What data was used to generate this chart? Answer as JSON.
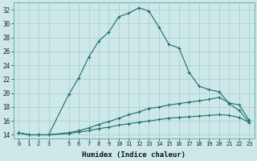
{
  "xlabel": "Humidex (Indice chaleur)",
  "ylabel": "",
  "bg_color": "#cce8e8",
  "grid_color": "#aacccc",
  "line_color": "#1a6e6e",
  "xlim": [
    -0.5,
    23.5
  ],
  "ylim": [
    13.5,
    33.0
  ],
  "xticks": [
    0,
    1,
    2,
    3,
    5,
    6,
    7,
    8,
    9,
    10,
    11,
    12,
    13,
    14,
    15,
    16,
    17,
    18,
    19,
    20,
    21,
    22,
    23
  ],
  "yticks": [
    14,
    16,
    18,
    20,
    22,
    24,
    26,
    28,
    30,
    32
  ],
  "line1_x": [
    0,
    1,
    2,
    3,
    5,
    6,
    7,
    8,
    9,
    10,
    11,
    12,
    13,
    14,
    15,
    16,
    17,
    18,
    19,
    20,
    21,
    22,
    23
  ],
  "line1_y": [
    14.3,
    14.0,
    14.0,
    14.0,
    19.8,
    22.2,
    25.2,
    27.5,
    28.8,
    31.0,
    31.5,
    32.3,
    31.8,
    29.5,
    27.0,
    26.5,
    23.0,
    21.0,
    20.5,
    20.2,
    18.5,
    17.5,
    15.8
  ],
  "line2_x": [
    0,
    1,
    2,
    3,
    5,
    6,
    7,
    8,
    9,
    10,
    11,
    12,
    13,
    14,
    15,
    16,
    17,
    18,
    19,
    20,
    21,
    22,
    23
  ],
  "line2_y": [
    14.3,
    14.0,
    14.0,
    14.0,
    14.3,
    14.6,
    15.0,
    15.5,
    15.9,
    16.4,
    16.9,
    17.3,
    17.8,
    18.0,
    18.3,
    18.5,
    18.7,
    18.9,
    19.1,
    19.4,
    18.6,
    18.3,
    16.1
  ],
  "line3_x": [
    0,
    1,
    2,
    3,
    5,
    6,
    7,
    8,
    9,
    10,
    11,
    12,
    13,
    14,
    15,
    16,
    17,
    18,
    19,
    20,
    21,
    22,
    23
  ],
  "line3_y": [
    14.3,
    14.0,
    14.0,
    14.0,
    14.2,
    14.4,
    14.6,
    14.9,
    15.1,
    15.4,
    15.6,
    15.8,
    16.0,
    16.2,
    16.4,
    16.5,
    16.6,
    16.7,
    16.8,
    16.9,
    16.8,
    16.5,
    15.8
  ]
}
